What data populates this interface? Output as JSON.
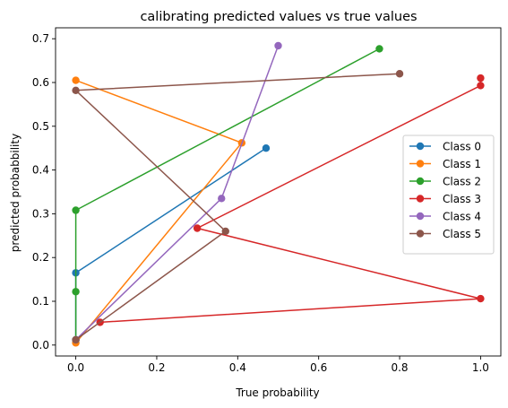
{
  "chart_data": {
    "type": "line",
    "title": "calibrating predicted values vs true values",
    "xlabel": "True probability",
    "ylabel": "predicted probabbility",
    "xlim": [
      -0.05,
      1.05
    ],
    "ylim": [
      -0.025,
      0.725
    ],
    "xticks": [
      0.0,
      0.2,
      0.4,
      0.6,
      0.8,
      1.0
    ],
    "xtick_labels": [
      "0.0",
      "0.2",
      "0.4",
      "0.6",
      "0.8",
      "1.0"
    ],
    "yticks": [
      0.0,
      0.1,
      0.2,
      0.3,
      0.4,
      0.5,
      0.6,
      0.7
    ],
    "ytick_labels": [
      "0.0",
      "0.1",
      "0.2",
      "0.3",
      "0.4",
      "0.5",
      "0.6",
      "0.7"
    ],
    "grid": false,
    "legend_position": "center-right",
    "series": [
      {
        "name": "Class 0",
        "color": "#1f77b4",
        "x": [
          0.0,
          0.0,
          0.47
        ],
        "y": [
          0.012,
          0.165,
          0.45
        ]
      },
      {
        "name": "Class 1",
        "color": "#ff7f0e",
        "x": [
          0.0,
          0.41,
          0.0
        ],
        "y": [
          0.605,
          0.462,
          0.005
        ]
      },
      {
        "name": "Class 2",
        "color": "#2ca02c",
        "x": [
          0.0,
          0.0,
          0.0,
          0.75
        ],
        "y": [
          0.012,
          0.122,
          0.308,
          0.677
        ]
      },
      {
        "name": "Class 3",
        "color": "#d62728",
        "x": [
          0.06,
          1.0,
          0.3,
          1.0,
          1.0
        ],
        "y": [
          0.052,
          0.106,
          0.267,
          0.593,
          0.61
        ]
      },
      {
        "name": "Class 4",
        "color": "#9467bd",
        "x": [
          0.0,
          0.36,
          0.5
        ],
        "y": [
          0.012,
          0.335,
          0.684
        ]
      },
      {
        "name": "Class 5",
        "color": "#8c564b",
        "x": [
          0.0,
          0.37,
          0.0,
          0.8
        ],
        "y": [
          0.012,
          0.26,
          0.582,
          0.62
        ]
      }
    ]
  }
}
